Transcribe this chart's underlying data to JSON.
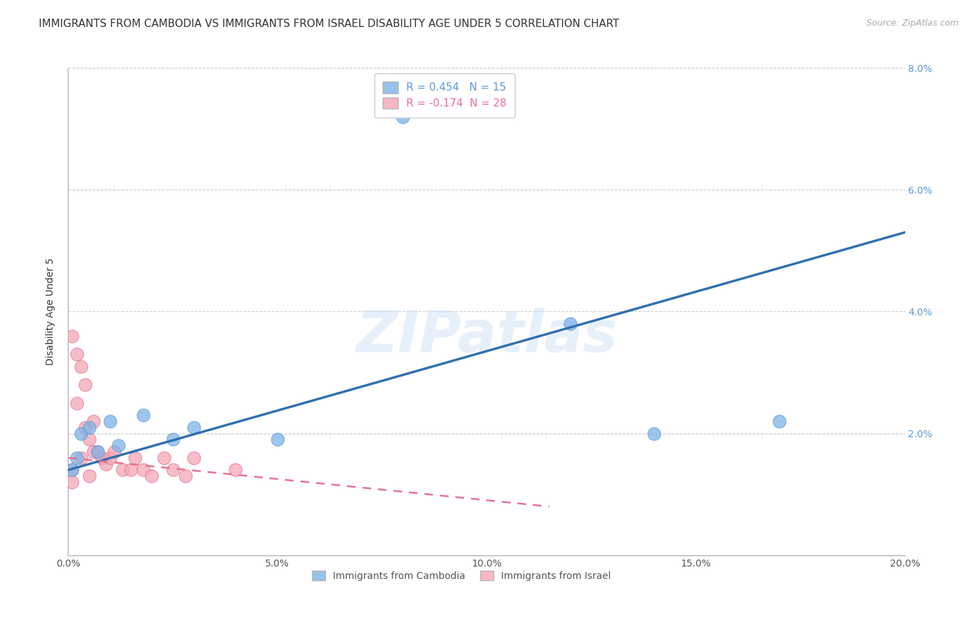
{
  "title": "IMMIGRANTS FROM CAMBODIA VS IMMIGRANTS FROM ISRAEL DISABILITY AGE UNDER 5 CORRELATION CHART",
  "source": "Source: ZipAtlas.com",
  "ylabel": "Disability Age Under 5",
  "xlim": [
    0.0,
    0.2
  ],
  "ylim": [
    0.0,
    0.08
  ],
  "xticks": [
    0.0,
    0.05,
    0.1,
    0.15,
    0.2
  ],
  "xtick_labels": [
    "0.0%",
    "5.0%",
    "10.0%",
    "15.0%",
    "20.0%"
  ],
  "yticks": [
    0.0,
    0.02,
    0.04,
    0.06,
    0.08
  ],
  "ytick_labels": [
    "",
    "2.0%",
    "4.0%",
    "6.0%",
    "8.0%"
  ],
  "cambodia_color": "#7EB3E8",
  "cambodia_edge_color": "#5B9BD5",
  "israel_color": "#F4A7B5",
  "israel_edge_color": "#E87090",
  "cambodia_R": 0.454,
  "cambodia_N": 15,
  "israel_R": -0.174,
  "israel_N": 28,
  "cambodia_x": [
    0.001,
    0.002,
    0.003,
    0.005,
    0.007,
    0.01,
    0.012,
    0.018,
    0.025,
    0.03,
    0.05,
    0.08,
    0.12,
    0.14,
    0.17
  ],
  "cambodia_y": [
    0.014,
    0.016,
    0.02,
    0.021,
    0.017,
    0.022,
    0.018,
    0.023,
    0.019,
    0.021,
    0.019,
    0.072,
    0.038,
    0.02,
    0.022
  ],
  "israel_x": [
    0.001,
    0.001,
    0.001,
    0.002,
    0.002,
    0.003,
    0.003,
    0.004,
    0.004,
    0.005,
    0.005,
    0.006,
    0.006,
    0.007,
    0.008,
    0.009,
    0.01,
    0.011,
    0.013,
    0.015,
    0.016,
    0.018,
    0.02,
    0.023,
    0.025,
    0.028,
    0.03,
    0.04
  ],
  "israel_y": [
    0.012,
    0.014,
    0.036,
    0.033,
    0.025,
    0.031,
    0.016,
    0.028,
    0.021,
    0.019,
    0.013,
    0.017,
    0.022,
    0.017,
    0.016,
    0.015,
    0.016,
    0.017,
    0.014,
    0.014,
    0.016,
    0.014,
    0.013,
    0.016,
    0.014,
    0.013,
    0.016,
    0.014
  ],
  "trend_blue_x_start": 0.0,
  "trend_blue_x_end": 0.2,
  "trend_blue_y_start": 0.014,
  "trend_blue_y_end": 0.053,
  "trend_pink_x_start": 0.0,
  "trend_pink_x_end": 0.115,
  "trend_pink_y_start": 0.016,
  "trend_pink_y_end": 0.008,
  "watermark_text": "ZIPatlas",
  "background_color": "#FFFFFF",
  "grid_color": "#CCCCCC",
  "title_fontsize": 11,
  "axis_label_fontsize": 10,
  "tick_fontsize": 10,
  "legend_fontsize": 11
}
